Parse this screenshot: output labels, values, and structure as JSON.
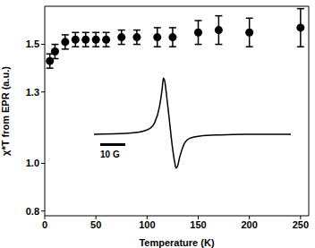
{
  "chart_data": [
    {
      "type": "scatter",
      "x_label": "Temperature (K)",
      "y_label": "χ*T from EPR (a.u.)",
      "x": [
        5,
        10,
        20,
        30,
        40,
        50,
        60,
        75,
        90,
        110,
        125,
        150,
        170,
        200,
        250
      ],
      "values": [
        1.43,
        1.47,
        1.51,
        1.52,
        1.52,
        1.52,
        1.52,
        1.53,
        1.53,
        1.53,
        1.53,
        1.55,
        1.56,
        1.55,
        1.57
      ],
      "errors": [
        0.03,
        0.03,
        0.03,
        0.03,
        0.03,
        0.03,
        0.03,
        0.03,
        0.03,
        0.04,
        0.04,
        0.05,
        0.06,
        0.06,
        0.08
      ],
      "color": "#000000",
      "marker": "circle",
      "xlim": [
        0,
        258
      ],
      "xticks": [
        0,
        50,
        100,
        150,
        200,
        250
      ],
      "ylim": [
        0.78,
        1.66
      ],
      "yticks": [
        0.8,
        {
          "value": 1.0,
          "label": "1.0"
        },
        1.3,
        1.5
      ],
      "grid": false
    },
    {
      "type": "line",
      "x": [
        -30,
        -20,
        -12,
        -8,
        -6,
        -4,
        -3,
        -2.5,
        -2,
        -1,
        0,
        1,
        2,
        2.5,
        3,
        4,
        6,
        8,
        12,
        20,
        30,
        48
      ],
      "values": [
        0,
        0.01,
        0.04,
        0.1,
        0.2,
        0.5,
        0.8,
        1.0,
        0.95,
        0.6,
        0.2,
        -0.2,
        -0.5,
        -0.6,
        -0.58,
        -0.4,
        -0.15,
        -0.07,
        -0.03,
        -0.01,
        0,
        0
      ],
      "color": "#000000",
      "xlim": [
        -30,
        48
      ],
      "ylim": [
        -0.7,
        1.05
      ],
      "tick_labels": false,
      "scale_bar": {
        "value": 10,
        "label": "10 G"
      }
    }
  ]
}
